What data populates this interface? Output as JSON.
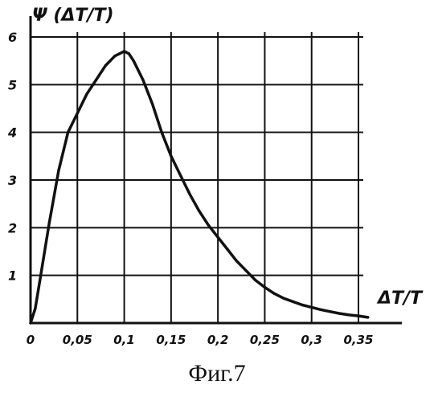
{
  "chart_data": {
    "type": "line",
    "ylabel": "Ψ (ΔT/T)",
    "xlabel": "ΔT/T",
    "xlim": [
      0,
      0.35
    ],
    "ylim": [
      0,
      6
    ],
    "x_ticks": [
      "0",
      "0,05",
      "0,1",
      "0,15",
      "0,2",
      "0,25",
      "0,3",
      "0,35"
    ],
    "y_ticks": [
      "1",
      "2",
      "3",
      "4",
      "5",
      "6"
    ],
    "grid": true,
    "series": [
      {
        "x": [
          0,
          0.005,
          0.01,
          0.02,
          0.03,
          0.04,
          0.05,
          0.06,
          0.07,
          0.08,
          0.09,
          0.095,
          0.1,
          0.105,
          0.11,
          0.12,
          0.13,
          0.14,
          0.15,
          0.16,
          0.17,
          0.18,
          0.19,
          0.2,
          0.21,
          0.22,
          0.23,
          0.24,
          0.25,
          0.26,
          0.27,
          0.28,
          0.29,
          0.3,
          0.31,
          0.32,
          0.33,
          0.34,
          0.35,
          0.36
        ],
        "y": [
          0,
          0.3,
          0.9,
          2.1,
          3.2,
          4.0,
          4.4,
          4.8,
          5.1,
          5.4,
          5.6,
          5.65,
          5.7,
          5.65,
          5.5,
          5.1,
          4.6,
          4.0,
          3.5,
          3.1,
          2.7,
          2.35,
          2.05,
          1.8,
          1.55,
          1.3,
          1.1,
          0.9,
          0.75,
          0.62,
          0.52,
          0.45,
          0.38,
          0.33,
          0.28,
          0.24,
          0.2,
          0.17,
          0.15,
          0.12
        ]
      }
    ]
  },
  "caption": "Фиг.7"
}
